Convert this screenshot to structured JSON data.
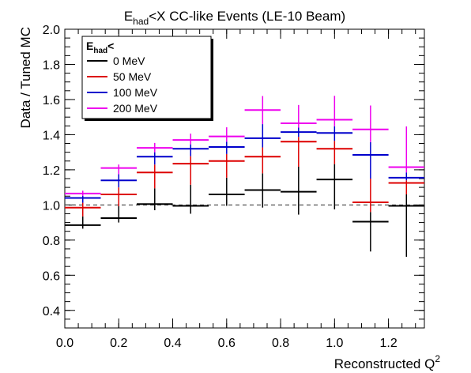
{
  "chart_data": {
    "type": "scatter",
    "title": {
      "main": "E",
      "sub": "had",
      "rest": "<X CC-like Events (LE-10 Beam)"
    },
    "xlabel": {
      "main": "Reconstructed Q",
      "sup": "2"
    },
    "ylabel": "Data / Tuned MC",
    "xlim": [
      0.0,
      1.333
    ],
    "ylim": [
      0.3,
      2.0
    ],
    "x_ticks": [
      "0.0",
      "0.2",
      "0.4",
      "0.6",
      "0.8",
      "1.0",
      "1.2"
    ],
    "y_ticks": [
      "0.4",
      "0.6",
      "0.8",
      "1.0",
      "1.2",
      "1.4",
      "1.6",
      "1.8",
      "2.0"
    ],
    "reference_line": 1.0,
    "legend": {
      "title_main": "E",
      "title_sub": "had",
      "title_rest": "<",
      "placement": "top-left"
    },
    "x_bin_edges": [
      0.0,
      0.1333,
      0.2667,
      0.4,
      0.5333,
      0.6667,
      0.8,
      0.9333,
      1.0667,
      1.2,
      1.333
    ],
    "series": [
      {
        "name": "0 MeV",
        "color": "#000000",
        "values": [
          0.885,
          0.925,
          1.005,
          0.995,
          1.06,
          1.085,
          1.075,
          1.145,
          0.905,
          0.995
        ],
        "errors": [
          0.02,
          0.025,
          0.035,
          0.045,
          0.065,
          0.1,
          0.13,
          0.17,
          0.17,
          0.29
        ]
      },
      {
        "name": "50 MeV",
        "color": "#dd0000",
        "values": [
          0.985,
          1.06,
          1.185,
          1.235,
          1.25,
          1.275,
          1.36,
          1.32,
          1.015,
          1.125
        ]
      },
      {
        "name": "100 MeV",
        "color": "#0000cc",
        "values": [
          1.04,
          1.14,
          1.275,
          1.32,
          1.33,
          1.38,
          1.415,
          1.41,
          1.285,
          1.155
        ]
      },
      {
        "name": "200 MeV",
        "color": "#ee00ee",
        "values": [
          1.065,
          1.21,
          1.325,
          1.37,
          1.39,
          1.54,
          1.465,
          1.485,
          1.43,
          1.215
        ]
      }
    ]
  }
}
